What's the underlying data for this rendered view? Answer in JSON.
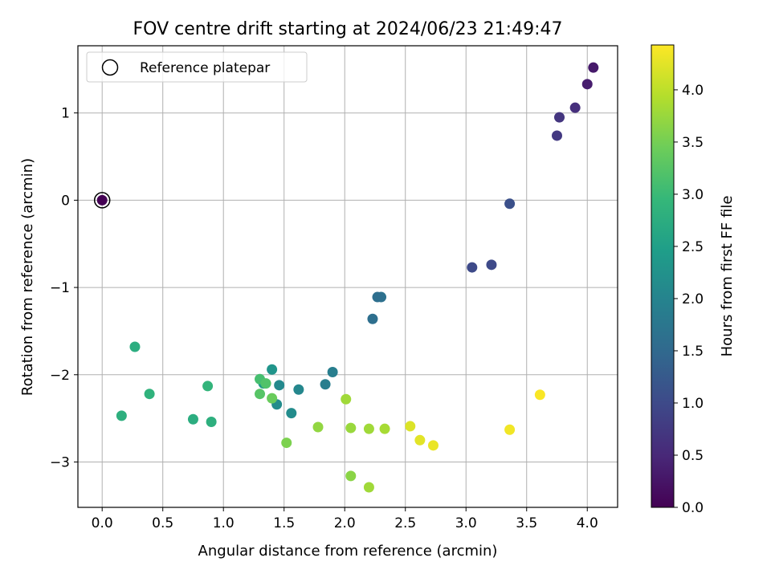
{
  "chart_data": {
    "type": "scatter",
    "title": "FOV centre drift starting at 2024/06/23 21:49:47",
    "xlabel": "Angular distance from reference (arcmin)",
    "ylabel": "Rotation from reference (arcmin)",
    "xlim": [
      -0.2,
      4.25
    ],
    "ylim": [
      -3.52,
      1.77
    ],
    "xticks": [
      0.0,
      0.5,
      1.0,
      1.5,
      2.0,
      2.5,
      3.0,
      3.5,
      4.0
    ],
    "xtick_labels": [
      "0.0",
      "0.5",
      "1.0",
      "1.5",
      "2.0",
      "2.5",
      "3.0",
      "3.5",
      "4.0"
    ],
    "yticks": [
      1,
      0,
      -1,
      -2,
      -3
    ],
    "ytick_labels": [
      "1",
      "0",
      "−1",
      "−2",
      "−3"
    ],
    "grid": true,
    "legend": {
      "placement": "upper-left",
      "entries": [
        "Reference platepar"
      ]
    },
    "reference_point": {
      "x": 0.0,
      "y": 0.0
    },
    "colorbar": {
      "label": "Hours from first FF file",
      "colormap": "viridis",
      "range": [
        0.0,
        4.43
      ],
      "ticks": [
        0.0,
        0.5,
        1.0,
        1.5,
        2.0,
        2.5,
        3.0,
        3.5,
        4.0
      ],
      "tick_labels": [
        "0.0",
        "0.5",
        "1.0",
        "1.5",
        "2.0",
        "2.5",
        "3.0",
        "3.5",
        "4.0"
      ]
    },
    "points": [
      {
        "x": 0.0,
        "y": 0.0,
        "hours": 0.0
      },
      {
        "x": 4.05,
        "y": 1.52,
        "hours": 0.3
      },
      {
        "x": 4.0,
        "y": 1.33,
        "hours": 0.35
      },
      {
        "x": 3.9,
        "y": 1.06,
        "hours": 0.6
      },
      {
        "x": 3.77,
        "y": 0.95,
        "hours": 0.7
      },
      {
        "x": 3.75,
        "y": 0.74,
        "hours": 0.75
      },
      {
        "x": 3.36,
        "y": -0.04,
        "hours": 1.1
      },
      {
        "x": 3.21,
        "y": -0.74,
        "hours": 1.0
      },
      {
        "x": 3.05,
        "y": -0.77,
        "hours": 1.0
      },
      {
        "x": 2.3,
        "y": -1.11,
        "hours": 1.65
      },
      {
        "x": 2.27,
        "y": -1.11,
        "hours": 1.6
      },
      {
        "x": 2.23,
        "y": -1.36,
        "hours": 1.6
      },
      {
        "x": 1.9,
        "y": -1.97,
        "hours": 1.9
      },
      {
        "x": 1.84,
        "y": -2.11,
        "hours": 1.9
      },
      {
        "x": 1.62,
        "y": -2.17,
        "hours": 2.05
      },
      {
        "x": 1.56,
        "y": -2.44,
        "hours": 2.15
      },
      {
        "x": 1.46,
        "y": -2.12,
        "hours": 2.1
      },
      {
        "x": 1.44,
        "y": -2.34,
        "hours": 2.15
      },
      {
        "x": 1.4,
        "y": -1.94,
        "hours": 2.3
      },
      {
        "x": 1.33,
        "y": -2.1,
        "hours": 2.4
      },
      {
        "x": 1.3,
        "y": -2.05,
        "hours": 3.1
      },
      {
        "x": 1.35,
        "y": -2.1,
        "hours": 3.2
      },
      {
        "x": 1.3,
        "y": -2.22,
        "hours": 3.25
      },
      {
        "x": 1.4,
        "y": -2.27,
        "hours": 3.4
      },
      {
        "x": 1.52,
        "y": -2.78,
        "hours": 3.55
      },
      {
        "x": 1.78,
        "y": -2.6,
        "hours": 3.7
      },
      {
        "x": 2.01,
        "y": -2.28,
        "hours": 3.8
      },
      {
        "x": 2.05,
        "y": -2.61,
        "hours": 3.75
      },
      {
        "x": 2.2,
        "y": -2.62,
        "hours": 3.8
      },
      {
        "x": 2.33,
        "y": -2.62,
        "hours": 3.85
      },
      {
        "x": 2.05,
        "y": -3.16,
        "hours": 3.65
      },
      {
        "x": 2.2,
        "y": -3.29,
        "hours": 3.8
      },
      {
        "x": 2.54,
        "y": -2.59,
        "hours": 4.2
      },
      {
        "x": 2.62,
        "y": -2.75,
        "hours": 4.25
      },
      {
        "x": 2.73,
        "y": -2.81,
        "hours": 4.3
      },
      {
        "x": 3.36,
        "y": -2.63,
        "hours": 4.35
      },
      {
        "x": 3.61,
        "y": -2.23,
        "hours": 4.4
      },
      {
        "x": 0.27,
        "y": -1.68,
        "hours": 2.75
      },
      {
        "x": 0.16,
        "y": -2.47,
        "hours": 2.8
      },
      {
        "x": 0.39,
        "y": -2.22,
        "hours": 2.85
      },
      {
        "x": 0.75,
        "y": -2.51,
        "hours": 2.75
      },
      {
        "x": 0.87,
        "y": -2.13,
        "hours": 2.9
      },
      {
        "x": 0.9,
        "y": -2.54,
        "hours": 2.8
      }
    ]
  }
}
